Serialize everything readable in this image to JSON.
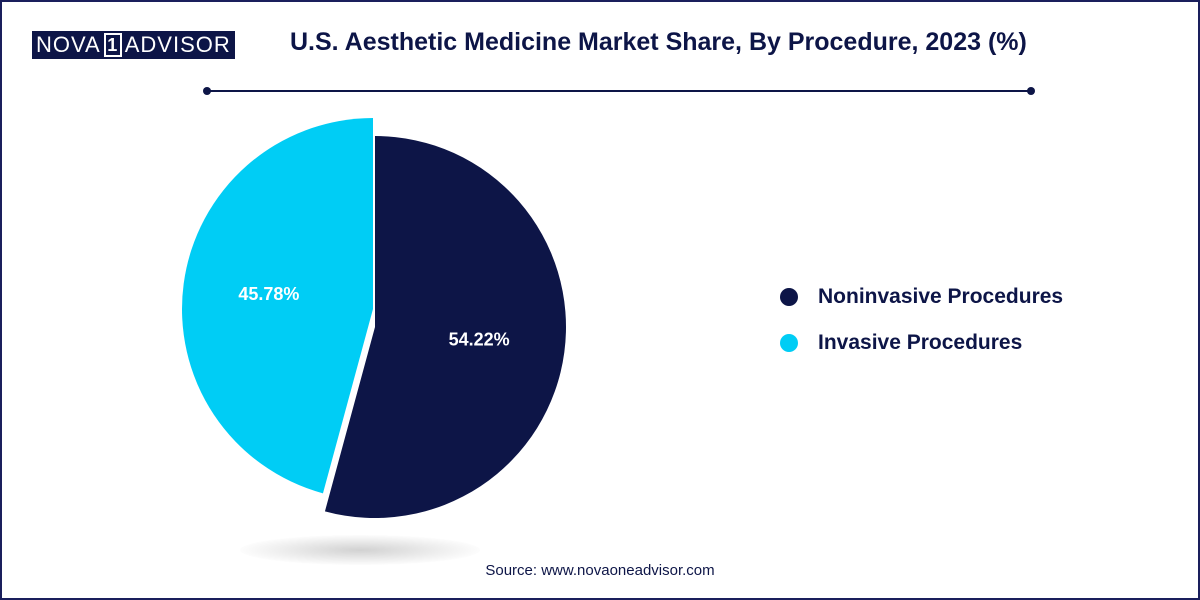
{
  "brand": {
    "logo_left": "NOVA",
    "logo_mid": "1",
    "logo_right": "ADVISOR"
  },
  "colors": {
    "navy": "#0d1547",
    "cyan": "#00cdf5"
  },
  "chart_data": {
    "type": "pie",
    "title": "U.S. Aesthetic Medicine Market Share, By Procedure, 2023 (%)",
    "series": [
      {
        "name": "Noninvasive Procedures",
        "value": 54.22,
        "label": "54.22%",
        "color": "#0d1547"
      },
      {
        "name": "Invasive Procedures",
        "value": 45.78,
        "label": "45.78%",
        "color": "#00cdf5",
        "exploded": true
      }
    ],
    "legend_position": "right"
  },
  "source": "Source: www.novaoneadvisor.com"
}
